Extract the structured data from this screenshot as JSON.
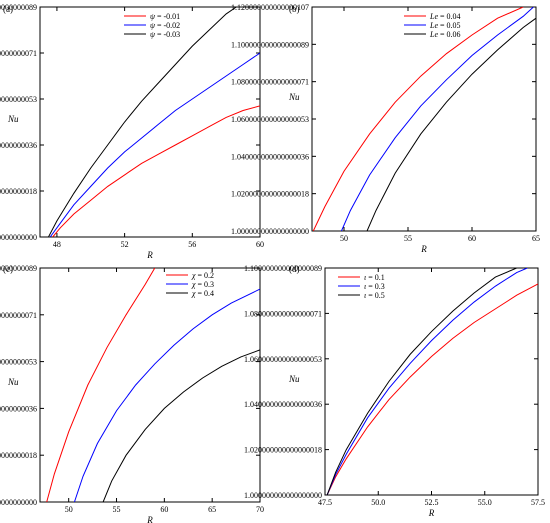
{
  "chart_data": [
    {
      "type": "line",
      "panel_label": "(a)",
      "xlabel": "R",
      "ylabel": "Nu",
      "xlim": [
        47,
        60
      ],
      "ylim": [
        1.0,
        1.1
      ],
      "xticks": [
        48,
        52,
        56,
        60
      ],
      "yticks": [
        1.0,
        1.02,
        1.04,
        1.06,
        1.08,
        1.1
      ],
      "legend_position": "top-center",
      "grid": false,
      "series": [
        {
          "name": "ψ = -0.01",
          "color": "#ff0000",
          "x": [
            47.75,
            48.2,
            49,
            50,
            51,
            52,
            53,
            54,
            55,
            56,
            57,
            58,
            59,
            60
          ],
          "y": [
            1.0,
            1.004,
            1.01,
            1.016,
            1.022,
            1.027,
            1.032,
            1.036,
            1.04,
            1.044,
            1.048,
            1.052,
            1.055,
            1.057
          ]
        },
        {
          "name": "ψ = -0.02",
          "color": "#0000ff",
          "x": [
            47.6,
            48.2,
            49,
            50,
            51,
            52,
            53,
            54,
            55,
            56,
            57,
            58,
            59,
            60
          ],
          "y": [
            1.0,
            1.006,
            1.014,
            1.022,
            1.03,
            1.037,
            1.043,
            1.049,
            1.055,
            1.06,
            1.065,
            1.07,
            1.075,
            1.08
          ]
        },
        {
          "name": "ψ = -0.03",
          "color": "#000000",
          "x": [
            47.5,
            48,
            49,
            50,
            51,
            52,
            53,
            54,
            55,
            56,
            57,
            58,
            58.6
          ],
          "y": [
            1.0,
            1.007,
            1.019,
            1.03,
            1.04,
            1.05,
            1.059,
            1.067,
            1.075,
            1.083,
            1.09,
            1.097,
            1.1
          ]
        }
      ]
    },
    {
      "type": "line",
      "panel_label": "(b)",
      "xlabel": "R",
      "ylabel": "Nu",
      "xlim": [
        47.5,
        65
      ],
      "ylim": [
        1.0,
        1.12
      ],
      "xticks": [
        50,
        55,
        60,
        65
      ],
      "yticks": [
        1.0,
        1.02,
        1.04,
        1.06,
        1.08,
        1.1,
        1.12
      ],
      "legend_position": "top-center",
      "grid": false,
      "series": [
        {
          "name": "Le = 0.04",
          "color": "#ff0000",
          "x": [
            47.6,
            48.5,
            50,
            52,
            54,
            56,
            58,
            60,
            62,
            64
          ],
          "y": [
            1.0,
            1.013,
            1.032,
            1.052,
            1.069,
            1.083,
            1.095,
            1.105,
            1.114,
            1.12
          ]
        },
        {
          "name": "Le = 0.05",
          "color": "#0000ff",
          "x": [
            49.8,
            50.5,
            52,
            54,
            56,
            58,
            60,
            62,
            64,
            64.8
          ],
          "y": [
            1.0,
            1.011,
            1.03,
            1.05,
            1.067,
            1.081,
            1.094,
            1.105,
            1.115,
            1.12
          ]
        },
        {
          "name": "Le = 0.06",
          "color": "#000000",
          "x": [
            51.8,
            52.5,
            54,
            56,
            58,
            60,
            62,
            64,
            65
          ],
          "y": [
            1.0,
            1.011,
            1.031,
            1.052,
            1.069,
            1.084,
            1.097,
            1.109,
            1.114
          ]
        }
      ]
    },
    {
      "type": "line",
      "panel_label": "(c)",
      "xlabel": "R",
      "ylabel": "Nu",
      "xlim": [
        47,
        70
      ],
      "ylim": [
        1.0,
        1.1
      ],
      "xticks": [
        50,
        55,
        60,
        65,
        70
      ],
      "yticks": [
        1.0,
        1.02,
        1.04,
        1.06,
        1.08,
        1.1
      ],
      "legend_position": "top-right",
      "grid": false,
      "series": [
        {
          "name": "χ = 0.2",
          "color": "#ff0000",
          "x": [
            47.7,
            48.5,
            50,
            52,
            54,
            56,
            58,
            59
          ],
          "y": [
            1.0,
            1.012,
            1.03,
            1.05,
            1.066,
            1.08,
            1.093,
            1.1
          ]
        },
        {
          "name": "χ = 0.3",
          "color": "#0000ff",
          "x": [
            50.6,
            51.5,
            53,
            55,
            57,
            59,
            61,
            63,
            65,
            67,
            70
          ],
          "y": [
            1.0,
            1.011,
            1.025,
            1.039,
            1.05,
            1.059,
            1.067,
            1.074,
            1.08,
            1.085,
            1.091
          ]
        },
        {
          "name": "χ = 0.4",
          "color": "#000000",
          "x": [
            53.6,
            54.5,
            56,
            58,
            60,
            62,
            64,
            66,
            68,
            70
          ],
          "y": [
            1.0,
            1.009,
            1.02,
            1.031,
            1.04,
            1.047,
            1.053,
            1.058,
            1.062,
            1.065
          ]
        }
      ]
    },
    {
      "type": "line",
      "panel_label": "(d)",
      "xlabel": "R",
      "ylabel": "Nu",
      "xlim": [
        47.5,
        57.5
      ],
      "ylim": [
        1.0,
        1.1
      ],
      "xticks": [
        47.5,
        50.0,
        52.5,
        55.0,
        57.5
      ],
      "yticks": [
        1.0,
        1.02,
        1.04,
        1.06,
        1.08,
        1.1
      ],
      "legend_position": "top-left",
      "grid": false,
      "series": [
        {
          "name": "ι = 0.1",
          "color": "#ff0000",
          "x": [
            47.6,
            48.0,
            48.5,
            49.5,
            50.5,
            51.5,
            52.5,
            53.5,
            54.5,
            55.5,
            56.5,
            57.5
          ],
          "y": [
            1.0,
            1.008,
            1.016,
            1.03,
            1.042,
            1.052,
            1.061,
            1.069,
            1.076,
            1.082,
            1.088,
            1.093
          ]
        },
        {
          "name": "ι = 0.3",
          "color": "#0000ff",
          "x": [
            47.6,
            48.0,
            48.5,
            49.5,
            50.5,
            51.5,
            52.5,
            53.5,
            54.5,
            55.5,
            56.5,
            57.0
          ],
          "y": [
            1.0,
            1.009,
            1.018,
            1.034,
            1.047,
            1.058,
            1.068,
            1.077,
            1.085,
            1.092,
            1.098,
            1.1
          ]
        },
        {
          "name": "ι = 0.5",
          "color": "#000000",
          "x": [
            47.6,
            48.0,
            48.5,
            49.5,
            50.5,
            51.5,
            52.5,
            53.5,
            54.5,
            55.5,
            56.5
          ],
          "y": [
            1.0,
            1.01,
            1.02,
            1.036,
            1.05,
            1.062,
            1.072,
            1.081,
            1.089,
            1.096,
            1.1
          ]
        }
      ]
    }
  ]
}
